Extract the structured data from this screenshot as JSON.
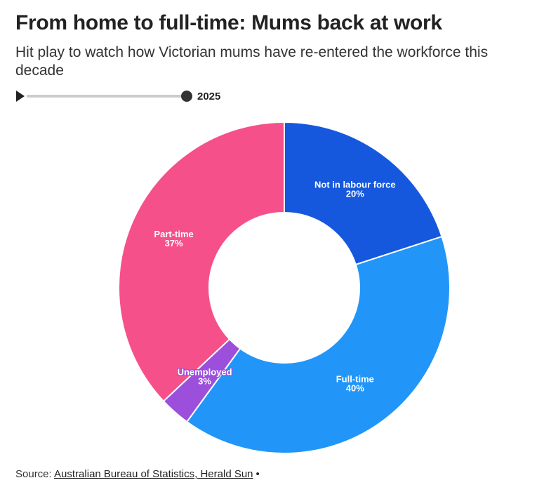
{
  "chart_data": {
    "type": "donut",
    "title": "From home to full-time: Mums back at work",
    "subtitle": "Hit play to watch how Victorian mums have re-entered the workforce this decade",
    "slider_label": "2025",
    "categories": [
      "Not in labour force",
      "Full-time",
      "Unemployed",
      "Part-time"
    ],
    "values": [
      20,
      40,
      3,
      37
    ],
    "value_labels": [
      "20%",
      "40%",
      "3%",
      "37%"
    ],
    "colors": [
      "#1558de",
      "#2196f8",
      "#9b4fdb",
      "#f5508a"
    ],
    "source_prefix": "Source:",
    "source": "Australian Bureau of Statistics, Herald Sun"
  }
}
